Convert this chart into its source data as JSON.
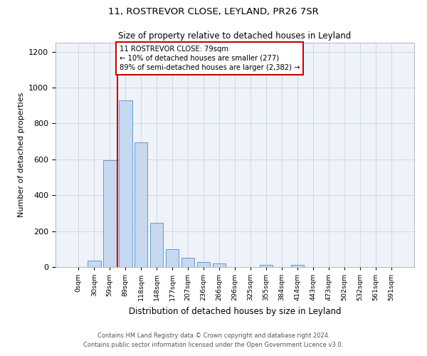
{
  "title1": "11, ROSTREVOR CLOSE, LEYLAND, PR26 7SR",
  "title2": "Size of property relative to detached houses in Leyland",
  "xlabel": "Distribution of detached houses by size in Leyland",
  "ylabel": "Number of detached properties",
  "bar_labels": [
    "0sqm",
    "30sqm",
    "59sqm",
    "89sqm",
    "118sqm",
    "148sqm",
    "177sqm",
    "207sqm",
    "236sqm",
    "266sqm",
    "296sqm",
    "325sqm",
    "355sqm",
    "384sqm",
    "414sqm",
    "443sqm",
    "473sqm",
    "502sqm",
    "532sqm",
    "561sqm",
    "591sqm"
  ],
  "bar_values": [
    0,
    35,
    595,
    930,
    695,
    245,
    100,
    52,
    28,
    20,
    0,
    0,
    12,
    0,
    12,
    0,
    0,
    0,
    0,
    0,
    0
  ],
  "bar_color": "#c6d9f0",
  "bar_edge_color": "#6699cc",
  "vline_color": "#cc0000",
  "annotation_text": "11 ROSTREVOR CLOSE: 79sqm\n← 10% of detached houses are smaller (277)\n89% of semi-detached houses are larger (2,382) →",
  "annotation_box_color": "#cc0000",
  "ylim": [
    0,
    1250
  ],
  "yticks": [
    0,
    200,
    400,
    600,
    800,
    1000,
    1200
  ],
  "footer1": "Contains HM Land Registry data © Crown copyright and database right 2024.",
  "footer2": "Contains public sector information licensed under the Open Government Licence v3.0.",
  "bg_color": "#eef2f9",
  "grid_color": "#d0d8e8"
}
